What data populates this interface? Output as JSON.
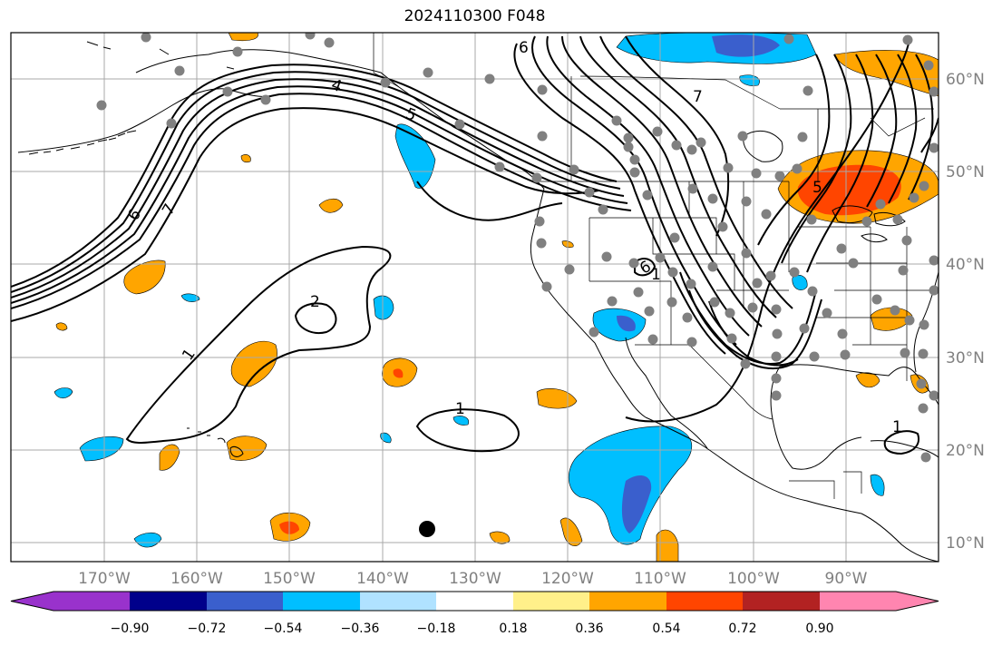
{
  "title": "2024110300 F048",
  "lon_ticks": [
    "170°W",
    "160°W",
    "150°W",
    "140°W",
    "130°W",
    "120°W",
    "110°W",
    "100°W",
    "90°W"
  ],
  "lat_ticks": [
    "60°N",
    "50°N",
    "40°N",
    "30°N",
    "20°N",
    "10°N"
  ],
  "colorbar": {
    "colors": [
      "#9932cc",
      "#00008b",
      "#3a5fcd",
      "#00bfff",
      "#b0e2ff",
      "#ffffff",
      "#fff08a",
      "#ffa500",
      "#ff4500",
      "#b22222",
      "#ff85b0"
    ],
    "labels": [
      "−0.90",
      "−0.72",
      "−0.54",
      "−0.36",
      "−0.18",
      "0.18",
      "0.36",
      "0.54",
      "0.72",
      "0.90"
    ]
  },
  "contour_labels": [
    "6",
    "7",
    "4",
    "5",
    "6",
    "7",
    "1",
    "6",
    "1",
    "2",
    "1",
    "1",
    "5",
    "1"
  ],
  "station_marker_color": "#808080",
  "highlight_marker_color": "#000000"
}
